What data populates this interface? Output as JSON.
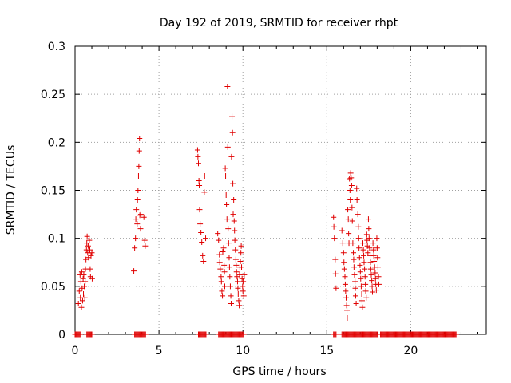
{
  "chart_data": {
    "type": "scatter",
    "title": "Day 192 of 2019, SRMTID for receiver rhpt",
    "xlabel": "GPS time / hours",
    "ylabel": "SRMTID / TECUs",
    "xlim": [
      0,
      24.5
    ],
    "ylim": [
      0,
      0.3
    ],
    "xticks": [
      0,
      5,
      10,
      15,
      20
    ],
    "xtick_labels": [
      "0",
      "5",
      "10",
      "15",
      "20"
    ],
    "yticks": [
      0,
      0.05,
      0.1,
      0.15,
      0.2,
      0.25,
      0.3
    ],
    "ytick_labels": [
      "0",
      "0.05",
      "0.1",
      "0.15",
      "0.2",
      "0.25",
      "0.3"
    ],
    "grid": true,
    "marker": "+",
    "color": "#e00000",
    "series": [
      {
        "name": "SRMTID",
        "points": [
          [
            0.2,
            0.032
          ],
          [
            0.25,
            0.045
          ],
          [
            0.3,
            0.062
          ],
          [
            0.32,
            0.038
          ],
          [
            0.35,
            0.055
          ],
          [
            0.38,
            0.028
          ],
          [
            0.4,
            0.065
          ],
          [
            0.42,
            0.048
          ],
          [
            0.45,
            0.035
          ],
          [
            0.48,
            0.058
          ],
          [
            0.5,
            0.042
          ],
          [
            0.52,
            0.062
          ],
          [
            0.55,
            0.05
          ],
          [
            0.58,
            0.038
          ],
          [
            0.6,
            0.055
          ],
          [
            0.62,
            0.068
          ],
          [
            0.65,
            0.078
          ],
          [
            0.68,
            0.088
          ],
          [
            0.7,
            0.095
          ],
          [
            0.72,
            0.102
          ],
          [
            0.75,
            0.085
          ],
          [
            0.78,
            0.092
          ],
          [
            0.8,
            0.08
          ],
          [
            0.85,
            0.098
          ],
          [
            0.88,
            0.088
          ],
          [
            0.9,
            0.068
          ],
          [
            0.92,
            0.06
          ],
          [
            0.95,
            0.082
          ],
          [
            1.0,
            0.085
          ],
          [
            1.02,
            0.058
          ],
          [
            3.5,
            0.066
          ],
          [
            3.55,
            0.09
          ],
          [
            3.6,
            0.1
          ],
          [
            3.62,
            0.12
          ],
          [
            3.65,
            0.13
          ],
          [
            3.7,
            0.115
          ],
          [
            3.72,
            0.14
          ],
          [
            3.75,
            0.15
          ],
          [
            3.78,
            0.165
          ],
          [
            3.8,
            0.175
          ],
          [
            3.82,
            0.191
          ],
          [
            3.84,
            0.204
          ],
          [
            3.86,
            0.124
          ],
          [
            3.9,
            0.11
          ],
          [
            3.92,
            0.125
          ],
          [
            4.1,
            0.122
          ],
          [
            4.15,
            0.098
          ],
          [
            4.18,
            0.092
          ],
          [
            7.3,
            0.192
          ],
          [
            7.32,
            0.185
          ],
          [
            7.35,
            0.178
          ],
          [
            7.38,
            0.16
          ],
          [
            7.4,
            0.155
          ],
          [
            7.42,
            0.13
          ],
          [
            7.45,
            0.115
          ],
          [
            7.5,
            0.106
          ],
          [
            7.55,
            0.096
          ],
          [
            7.6,
            0.082
          ],
          [
            7.65,
            0.076
          ],
          [
            7.7,
            0.148
          ],
          [
            7.72,
            0.165
          ],
          [
            7.78,
            0.1
          ],
          [
            8.5,
            0.105
          ],
          [
            8.55,
            0.098
          ],
          [
            8.6,
            0.083
          ],
          [
            8.62,
            0.075
          ],
          [
            8.65,
            0.068
          ],
          [
            8.7,
            0.06
          ],
          [
            8.72,
            0.055
          ],
          [
            8.75,
            0.045
          ],
          [
            8.78,
            0.04
          ],
          [
            8.8,
            0.086
          ],
          [
            8.85,
            0.09
          ],
          [
            8.88,
            0.072
          ],
          [
            8.9,
            0.065
          ],
          [
            8.92,
            0.05
          ],
          [
            8.95,
            0.173
          ],
          [
            8.97,
            0.165
          ],
          [
            9.0,
            0.145
          ],
          [
            9.02,
            0.135
          ],
          [
            9.05,
            0.12
          ],
          [
            9.08,
            0.258
          ],
          [
            9.1,
            0.195
          ],
          [
            9.12,
            0.11
          ],
          [
            9.15,
            0.095
          ],
          [
            9.18,
            0.08
          ],
          [
            9.2,
            0.07
          ],
          [
            9.22,
            0.06
          ],
          [
            9.25,
            0.05
          ],
          [
            9.28,
            0.04
          ],
          [
            9.3,
            0.032
          ],
          [
            9.32,
            0.185
          ],
          [
            9.35,
            0.227
          ],
          [
            9.38,
            0.21
          ],
          [
            9.4,
            0.157
          ],
          [
            9.42,
            0.125
          ],
          [
            9.45,
            0.14
          ],
          [
            9.48,
            0.118
          ],
          [
            9.5,
            0.108
          ],
          [
            9.52,
            0.098
          ],
          [
            9.55,
            0.088
          ],
          [
            9.58,
            0.078
          ],
          [
            9.6,
            0.072
          ],
          [
            9.62,
            0.065
          ],
          [
            9.65,
            0.06
          ],
          [
            9.68,
            0.055
          ],
          [
            9.7,
            0.048
          ],
          [
            9.72,
            0.042
          ],
          [
            9.75,
            0.035
          ],
          [
            9.78,
            0.03
          ],
          [
            9.8,
            0.062
          ],
          [
            9.82,
            0.07
          ],
          [
            9.85,
            0.076
          ],
          [
            9.88,
            0.085
          ],
          [
            9.9,
            0.092
          ],
          [
            9.92,
            0.07
          ],
          [
            9.95,
            0.058
          ],
          [
            9.98,
            0.05
          ],
          [
            10.0,
            0.045
          ],
          [
            10.02,
            0.055
          ],
          [
            10.05,
            0.04
          ],
          [
            10.08,
            0.062
          ],
          [
            15.4,
            0.122
          ],
          [
            15.42,
            0.112
          ],
          [
            15.45,
            0.1
          ],
          [
            15.5,
            0.078
          ],
          [
            15.52,
            0.063
          ],
          [
            15.55,
            0.048
          ],
          [
            15.9,
            0.108
          ],
          [
            15.95,
            0.095
          ],
          [
            16.0,
            0.085
          ],
          [
            16.02,
            0.075
          ],
          [
            16.05,
            0.068
          ],
          [
            16.08,
            0.06
          ],
          [
            16.1,
            0.052
          ],
          [
            16.12,
            0.045
          ],
          [
            16.15,
            0.038
          ],
          [
            16.18,
            0.03
          ],
          [
            16.2,
            0.025
          ],
          [
            16.22,
            0.017
          ],
          [
            16.25,
            0.13
          ],
          [
            16.28,
            0.12
          ],
          [
            16.3,
            0.105
          ],
          [
            16.32,
            0.095
          ],
          [
            16.35,
            0.162
          ],
          [
            16.38,
            0.15
          ],
          [
            16.4,
            0.14
          ],
          [
            16.42,
            0.168
          ],
          [
            16.45,
            0.163
          ],
          [
            16.48,
            0.155
          ],
          [
            16.5,
            0.132
          ],
          [
            16.52,
            0.118
          ],
          [
            16.55,
            0.095
          ],
          [
            16.58,
            0.085
          ],
          [
            16.6,
            0.078
          ],
          [
            16.62,
            0.07
          ],
          [
            16.65,
            0.062
          ],
          [
            16.68,
            0.055
          ],
          [
            16.7,
            0.048
          ],
          [
            16.72,
            0.04
          ],
          [
            16.75,
            0.032
          ],
          [
            16.78,
            0.152
          ],
          [
            16.8,
            0.14
          ],
          [
            16.85,
            0.125
          ],
          [
            16.88,
            0.112
          ],
          [
            16.9,
            0.1
          ],
          [
            16.92,
            0.09
          ],
          [
            16.95,
            0.08
          ],
          [
            16.98,
            0.072
          ],
          [
            17.0,
            0.065
          ],
          [
            17.02,
            0.058
          ],
          [
            17.05,
            0.05
          ],
          [
            17.08,
            0.042
          ],
          [
            17.1,
            0.035
          ],
          [
            17.12,
            0.028
          ],
          [
            17.15,
            0.095
          ],
          [
            17.18,
            0.088
          ],
          [
            17.2,
            0.082
          ],
          [
            17.22,
            0.075
          ],
          [
            17.25,
            0.068
          ],
          [
            17.28,
            0.06
          ],
          [
            17.3,
            0.052
          ],
          [
            17.32,
            0.045
          ],
          [
            17.35,
            0.038
          ],
          [
            17.38,
            0.104
          ],
          [
            17.4,
            0.098
          ],
          [
            17.42,
            0.092
          ],
          [
            17.45,
            0.085
          ],
          [
            17.48,
            0.12
          ],
          [
            17.5,
            0.11
          ],
          [
            17.52,
            0.1
          ],
          [
            17.55,
            0.09
          ],
          [
            17.58,
            0.082
          ],
          [
            17.6,
            0.075
          ],
          [
            17.62,
            0.068
          ],
          [
            17.65,
            0.062
          ],
          [
            17.68,
            0.056
          ],
          [
            17.7,
            0.05
          ],
          [
            17.72,
            0.044
          ],
          [
            17.75,
            0.095
          ],
          [
            17.78,
            0.088
          ],
          [
            17.8,
            0.082
          ],
          [
            17.82,
            0.076
          ],
          [
            17.85,
            0.07
          ],
          [
            17.88,
            0.064
          ],
          [
            17.9,
            0.058
          ],
          [
            17.92,
            0.052
          ],
          [
            17.95,
            0.046
          ],
          [
            17.98,
            0.1
          ],
          [
            18.0,
            0.09
          ],
          [
            18.02,
            0.08
          ],
          [
            18.05,
            0.07
          ],
          [
            18.08,
            0.06
          ],
          [
            18.1,
            0.052
          ]
        ],
        "zero_runs": [
          [
            0.0,
            0.3
          ],
          [
            0.7,
            22.7
          ]
        ],
        "zero_gaps": [
          [
            1.02,
            3.5
          ],
          [
            4.2,
            7.3
          ],
          [
            7.8,
            8.4
          ],
          [
            8.4,
            8.5
          ],
          [
            10.1,
            15.4
          ],
          [
            15.6,
            15.9
          ],
          [
            18.1,
            18.2
          ]
        ]
      }
    ]
  }
}
